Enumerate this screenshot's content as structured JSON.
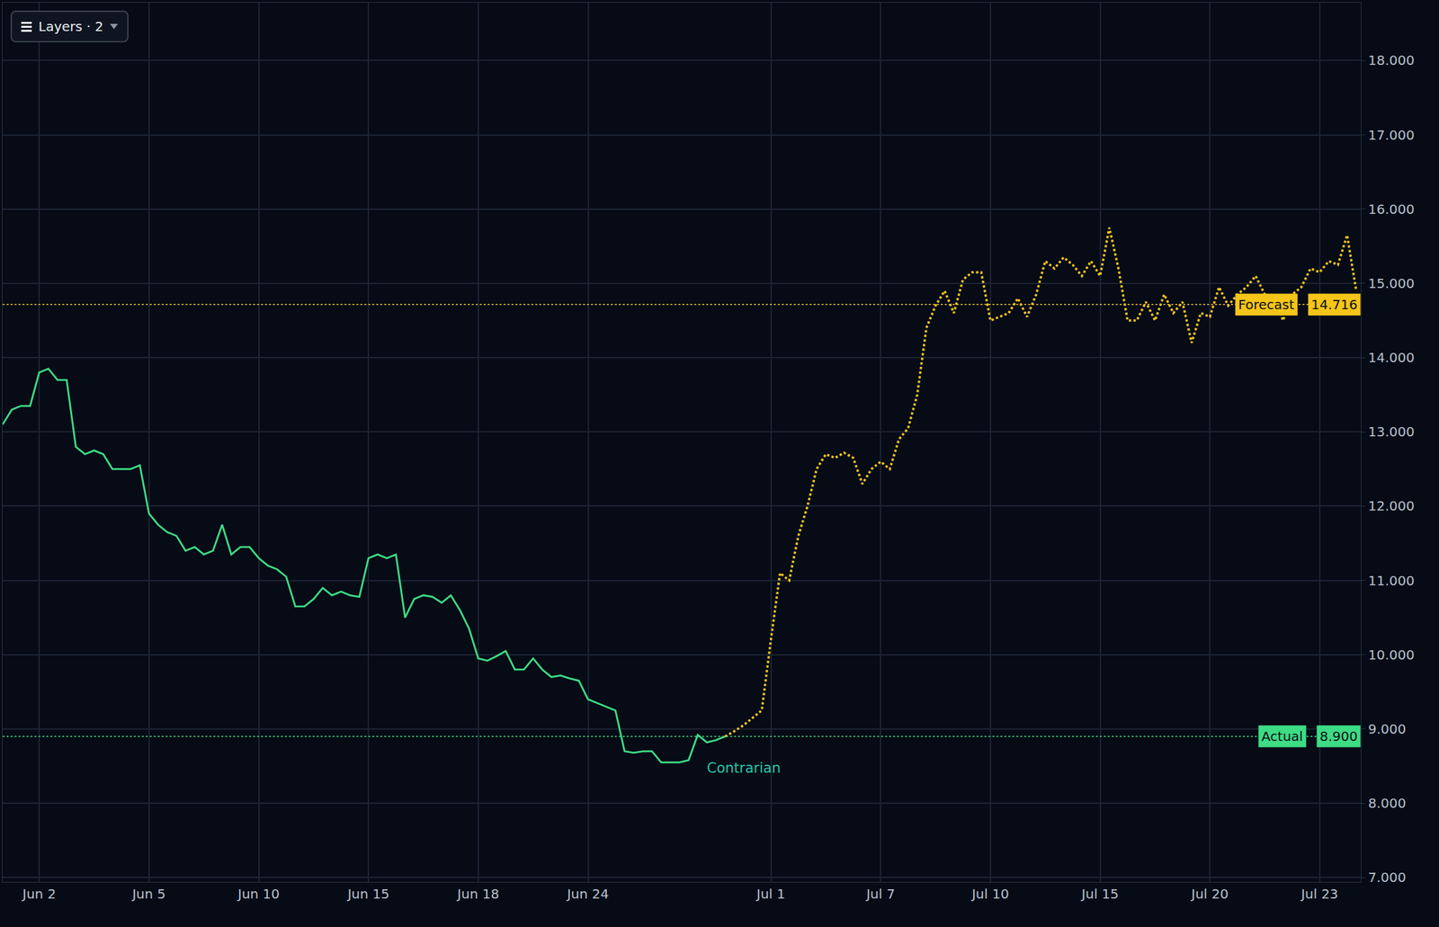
{
  "chart_data": {
    "type": "line",
    "layers_label": "Layers · 2",
    "grid": true,
    "categories": [
      null,
      null,
      null,
      null,
      "Jun 2",
      null,
      null,
      null,
      null,
      null,
      null,
      null,
      null,
      null,
      null,
      null,
      "Jun 5",
      null,
      null,
      null,
      null,
      null,
      null,
      null,
      null,
      null,
      null,
      null,
      "Jun 10",
      null,
      null,
      null,
      null,
      null,
      null,
      null,
      null,
      null,
      null,
      null,
      "Jun 15",
      null,
      null,
      null,
      null,
      null,
      null,
      null,
      null,
      null,
      null,
      null,
      "Jun 18",
      null,
      null,
      null,
      null,
      null,
      null,
      null,
      null,
      null,
      null,
      null,
      "Jun 24",
      null,
      null,
      null,
      null,
      null,
      null,
      null,
      null,
      null,
      null,
      null,
      null,
      null,
      null,
      null,
      null,
      null,
      null,
      null,
      "Jul 1",
      null,
      null,
      null,
      null,
      null,
      null,
      null,
      null,
      null,
      null,
      null,
      "Jul 7",
      null,
      null,
      null,
      null,
      null,
      null,
      null,
      null,
      null,
      null,
      null,
      "Jul 10",
      null,
      null,
      null,
      null,
      null,
      null,
      null,
      null,
      null,
      null,
      null,
      "Jul 15",
      null,
      null,
      null,
      null,
      null,
      null,
      null,
      null,
      null,
      null,
      null,
      "Jul 20",
      null,
      null,
      null,
      null,
      null,
      null,
      null,
      null,
      null,
      null,
      null,
      "Jul 23",
      null,
      null,
      null,
      null
    ],
    "series": [
      {
        "name": "Actual",
        "color": "#3ddc84",
        "line_style": "solid",
        "values": [
          13.1,
          13.3,
          13.35,
          13.35,
          13.8,
          13.85,
          13.7,
          13.7,
          12.8,
          12.7,
          12.75,
          12.7,
          12.5,
          12.5,
          12.5,
          12.55,
          11.9,
          11.75,
          11.65,
          11.6,
          11.4,
          11.45,
          11.35,
          11.4,
          11.75,
          11.35,
          11.45,
          11.45,
          11.3,
          11.2,
          11.15,
          11.05,
          10.65,
          10.65,
          10.75,
          10.9,
          10.8,
          10.85,
          10.8,
          10.78,
          11.3,
          11.35,
          11.3,
          11.35,
          10.5,
          10.75,
          10.8,
          10.78,
          10.7,
          10.8,
          10.6,
          10.35,
          9.95,
          9.92,
          9.98,
          10.05,
          9.8,
          9.8,
          9.95,
          9.8,
          9.7,
          9.72,
          9.68,
          9.65,
          9.4,
          9.35,
          9.3,
          9.25,
          8.7,
          8.68,
          8.7,
          8.7,
          8.55,
          8.55,
          8.55,
          8.58,
          8.92,
          8.82,
          8.85,
          8.9,
          null,
          null,
          null,
          null,
          null,
          null,
          null,
          null,
          null,
          null,
          null,
          null,
          null,
          null,
          null,
          null,
          null,
          null,
          null,
          null,
          null,
          null,
          null,
          null,
          null,
          null,
          null,
          null,
          null,
          null,
          null,
          null,
          null,
          null,
          null,
          null,
          null,
          null,
          null,
          null,
          null,
          null,
          null,
          null,
          null,
          null,
          null,
          null,
          null,
          null,
          null,
          null,
          null,
          null,
          null,
          null,
          null,
          null,
          null,
          null,
          null,
          null,
          null,
          null,
          null,
          null,
          null,
          null,
          null
        ]
      },
      {
        "name": "Forecast",
        "color": "#f5c518",
        "line_style": "dot",
        "values": [
          null,
          null,
          null,
          null,
          null,
          null,
          null,
          null,
          null,
          null,
          null,
          null,
          null,
          null,
          null,
          null,
          null,
          null,
          null,
          null,
          null,
          null,
          null,
          null,
          null,
          null,
          null,
          null,
          null,
          null,
          null,
          null,
          null,
          null,
          null,
          null,
          null,
          null,
          null,
          null,
          null,
          null,
          null,
          null,
          null,
          null,
          null,
          null,
          null,
          null,
          null,
          null,
          null,
          null,
          null,
          null,
          null,
          null,
          null,
          null,
          null,
          null,
          null,
          null,
          null,
          null,
          null,
          null,
          null,
          null,
          null,
          null,
          null,
          null,
          null,
          null,
          null,
          null,
          null,
          8.9,
          8.97,
          9.05,
          9.15,
          9.25,
          10.2,
          11.1,
          11.0,
          11.6,
          12.0,
          12.5,
          12.7,
          12.65,
          12.72,
          12.65,
          12.3,
          12.5,
          12.6,
          12.5,
          12.9,
          13.05,
          13.5,
          14.4,
          14.7,
          14.9,
          14.6,
          15.05,
          15.15,
          15.15,
          14.5,
          14.55,
          14.6,
          14.8,
          14.55,
          14.85,
          15.3,
          15.2,
          15.35,
          15.25,
          15.1,
          15.3,
          15.1,
          15.75,
          15.2,
          14.5,
          14.5,
          14.75,
          14.5,
          14.85,
          14.6,
          14.75,
          14.2,
          14.6,
          14.55,
          14.95,
          14.7,
          14.85,
          14.95,
          15.1,
          14.85,
          14.8,
          14.5,
          14.85,
          14.95,
          15.2,
          15.15,
          15.3,
          15.25,
          15.65,
          14.9
        ]
      }
    ],
    "ylim": [
      6.94,
      18.78
    ],
    "yticks": [
      {
        "value": 7,
        "label": "7.000"
      },
      {
        "value": 8,
        "label": "8.000"
      },
      {
        "value": 9,
        "label": "9.000"
      },
      {
        "value": 10,
        "label": "10.000"
      },
      {
        "value": 11,
        "label": "11.000"
      },
      {
        "value": 12,
        "label": "12.000"
      },
      {
        "value": 13,
        "label": "13.000"
      },
      {
        "value": 14,
        "label": "14.000"
      },
      {
        "value": 15,
        "label": "15.000"
      },
      {
        "value": 16,
        "label": "16.000"
      },
      {
        "value": 17,
        "label": "17.000"
      },
      {
        "value": 18,
        "label": "18.000"
      }
    ],
    "reference_lines": [
      {
        "series": "Forecast",
        "value": 14.716,
        "label": "14.716"
      },
      {
        "series": "Actual",
        "value": 8.9,
        "label": "8.900"
      }
    ],
    "annotations": [
      {
        "text": "Contrarian",
        "x_index": 81,
        "y": 8.47,
        "color": "#26c6a8"
      }
    ]
  }
}
